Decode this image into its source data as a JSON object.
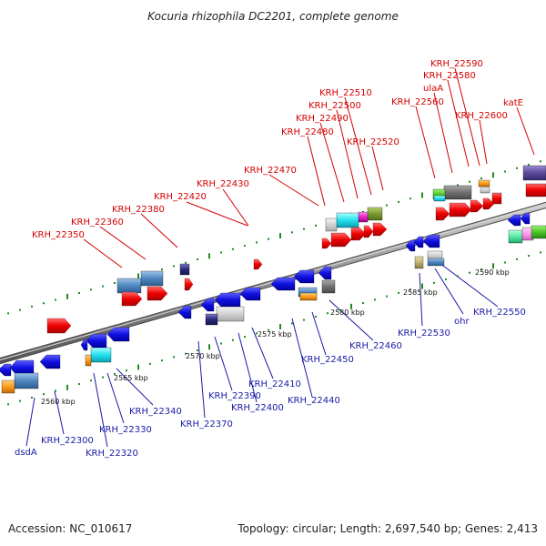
{
  "title": "Kocuria rhizophila DC2201, complete genome",
  "footer": {
    "accession": "Accession: NC_010617",
    "summary": "Topology: circular; Length: 2,697,540 bp; Genes: 2,413"
  },
  "colors": {
    "backbone": "#8c8c8c",
    "top_labels": "#d40000",
    "bottom_labels": "#1a1aa6",
    "ticks": "#1e8c1e"
  },
  "kbp_labels": [
    "2560 kbp",
    "2565 kbp",
    "2570 kbp",
    "2575 kbp",
    "2580 kbp",
    "2585 kbp",
    "2590 kbp"
  ],
  "top_genes": [
    "KRH_22350",
    "KRH_22360",
    "KRH_22380",
    "KRH_22420",
    "KRH_22430",
    "KRH_22470",
    "KRH_22480",
    "KRH_22490",
    "KRH_22500",
    "KRH_22510",
    "KRH_22520",
    "KRH_22560",
    "ulaA",
    "KRH_22580",
    "KRH_22590",
    "KRH_22600",
    "katE"
  ],
  "bottom_genes": [
    "dsdA",
    "KRH_22300",
    "KRH_22320",
    "KRH_22330",
    "KRH_22340",
    "KRH_22370",
    "KRH_22390",
    "KRH_22400",
    "KRH_22410",
    "KRH_22440",
    "KRH_22450",
    "KRH_22460",
    "KRH_22530",
    "ohr",
    "KRH_22550"
  ]
}
